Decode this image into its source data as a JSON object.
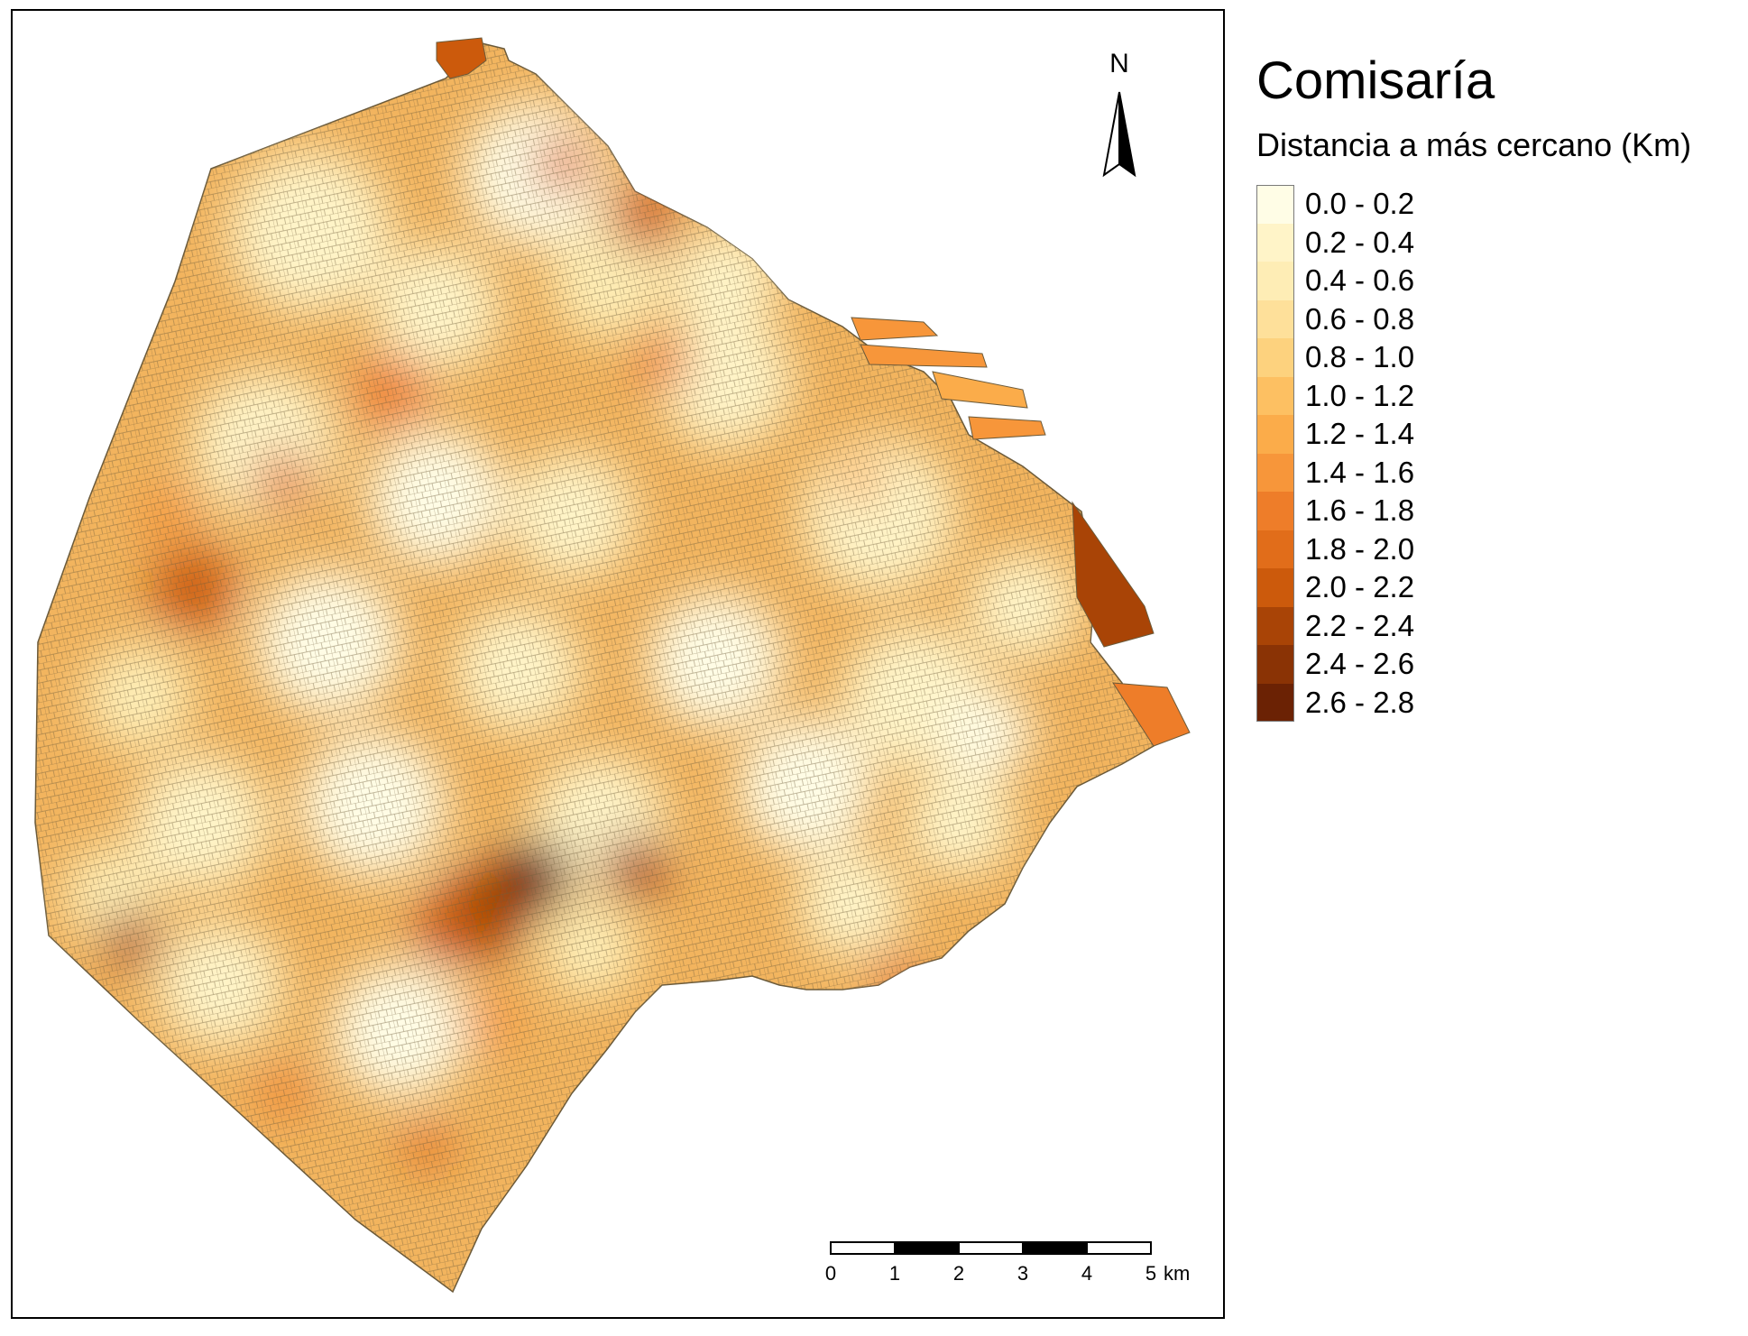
{
  "map": {
    "north_label": "N",
    "scale_bar": {
      "ticks": [
        "0",
        "1",
        "2",
        "3",
        "4",
        "5"
      ],
      "unit": "km"
    }
  },
  "legend": {
    "title": "Comisaría",
    "subtitle": "Distancia a más cercano (Km)",
    "classes": [
      {
        "label": "0.0 - 0.2",
        "color": "#fffde6"
      },
      {
        "label": "0.2 - 0.4",
        "color": "#fff4c8"
      },
      {
        "label": "0.4 - 0.6",
        "color": "#feedb5"
      },
      {
        "label": "0.6 - 0.8",
        "color": "#fee09a"
      },
      {
        "label": "0.8 - 1.0",
        "color": "#fdd27e"
      },
      {
        "label": "1.0 - 1.2",
        "color": "#fdc062"
      },
      {
        "label": "1.2 - 1.4",
        "color": "#fbac4a"
      },
      {
        "label": "1.4 - 1.6",
        "color": "#f7963a"
      },
      {
        "label": "1.6 - 1.8",
        "color": "#ee7d29"
      },
      {
        "label": "1.8 - 2.0",
        "color": "#e16d1a"
      },
      {
        "label": "2.0 - 2.2",
        "color": "#cc5a0c"
      },
      {
        "label": "2.2 - 2.4",
        "color": "#a94406"
      },
      {
        "label": "2.4 - 2.6",
        "color": "#8a3305"
      },
      {
        "label": "2.6 - 2.8",
        "color": "#6b2204"
      }
    ]
  }
}
